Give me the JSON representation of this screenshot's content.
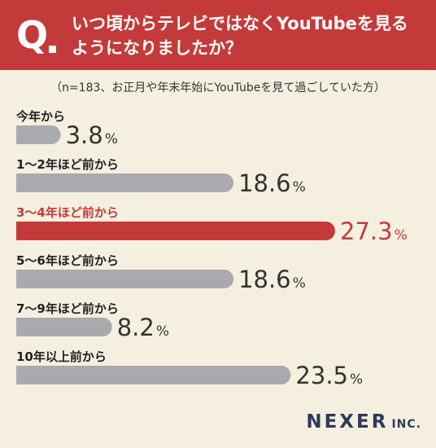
{
  "header": {
    "q_mark": "Q",
    "question": "いつ頃からテレビではなくYouTubeを見る\nようになりましたか？"
  },
  "note": "（n=183、お正月や年末年始にYouTubeを見て過ごしていた方）",
  "logo": {
    "main": "NEXER",
    "sub": "INC."
  },
  "colors": {
    "accent": "#c43a3a",
    "bar": "#a9a9ae",
    "background": "#f5efe0",
    "logo": "#2b3a5c"
  },
  "chart_data": {
    "type": "bar",
    "orientation": "horizontal",
    "unit": "%",
    "categories": [
      "今年から",
      "1〜2年ほど前から",
      "3〜4年ほど前から",
      "5〜6年ほど前から",
      "7〜9年ほど前から",
      "10年以上前から"
    ],
    "values": [
      3.8,
      18.6,
      27.3,
      18.6,
      8.2,
      23.5
    ],
    "highlight_index": 2,
    "xlim": [
      0,
      30
    ],
    "grid": false,
    "legend": false
  }
}
